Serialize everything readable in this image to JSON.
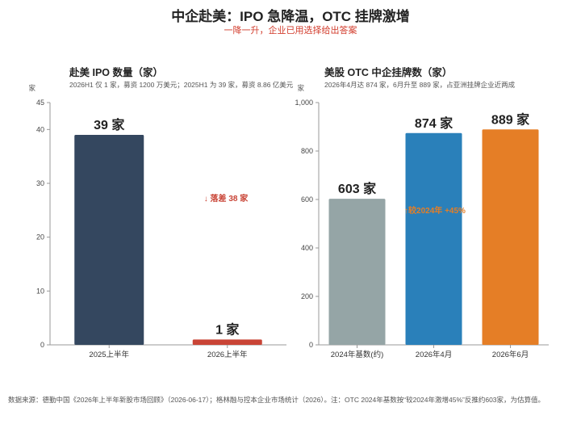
{
  "header": {
    "title": "中企赴美：IPO 急降温，OTC 挂牌激增",
    "subtitle": "一降一升，企业已用选择给出答案"
  },
  "footnote": "数据来源：德勤中国《2026年上半年新股市场回顾》（2026-06-17）；格林融与控本企业市场统计（2026）。注：OTC 2024年基数按“较2024年激增45%”反推约603家，为估算值。",
  "colors": {
    "ipo_2025": "#34475f",
    "ipo_2026": "#c94436",
    "otc_2024": "#95a5a6",
    "otc_2026_04": "#2a80ba",
    "otc_2026_06": "#e57e26",
    "drop_annotation": "#c94436",
    "rise_annotation": "#e57e26"
  },
  "chart_data": [
    {
      "type": "bar",
      "title": "赴美 IPO 数量（家）",
      "note": "2026H1 仅 1 家，募资 1200 万美元；2025H1 为 39 家，募资 8.86 亿美元",
      "ylabel": "家",
      "ylim": [
        0,
        45
      ],
      "yticks": [
        0,
        10,
        20,
        30,
        40,
        45
      ],
      "ytick_labels": [
        "0",
        "10",
        "20",
        "30",
        "40",
        "45"
      ],
      "categories": [
        "2025上半年",
        "2026上半年"
      ],
      "values": [
        39,
        1
      ],
      "data_labels": [
        "39 家",
        "1 家"
      ],
      "annotation": "↓ 落差 38 家",
      "grid": false
    },
    {
      "type": "bar",
      "title": "美股 OTC 中企挂牌数（家）",
      "note": "2026年4月达 874 家，6月升至 889 家，占亚洲挂牌企业近两成",
      "ylabel": "家",
      "ylim": [
        0,
        1000
      ],
      "yticks": [
        0,
        200,
        400,
        600,
        800,
        1000
      ],
      "ytick_labels": [
        "0",
        "200",
        "400",
        "600",
        "800",
        "1,000"
      ],
      "categories": [
        "2024年基数(约)",
        "2026年4月",
        "2026年6月"
      ],
      "values": [
        603,
        874,
        889
      ],
      "data_labels": [
        "603 家",
        "874 家",
        "889 家"
      ],
      "annotation": "↑较2024年 +45%",
      "grid": false
    }
  ]
}
